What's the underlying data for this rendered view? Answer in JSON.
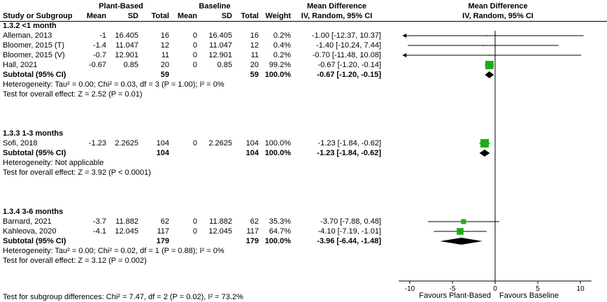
{
  "columns": {
    "study": "Study or Subgroup",
    "mean": "Mean",
    "sd": "SD",
    "total": "Total",
    "weight": "Weight",
    "group1": "Plant-Based",
    "group2": "Baseline",
    "md_header": "Mean Difference",
    "md_sub": "IV, Random, 95% CI",
    "plot_header": "Mean Difference",
    "plot_sub": "IV, Random, 95% CI"
  },
  "footer": {
    "subgroup_test": "Test for subgroup differences: Chi² = 7.47, df = 2 (P = 0.02), I² = 73.2%"
  },
  "colors": {
    "marker": "#17b017",
    "ci_line": "#000000",
    "diamond": "#000000",
    "axis": "#000000"
  },
  "chart_data": {
    "type": "forest",
    "effect_label": "Mean Difference",
    "method": "IV, Random, 95% CI",
    "axis": {
      "ticks": [
        -10,
        -5,
        0,
        5,
        10
      ],
      "range": [
        -10.8,
        10.8
      ],
      "favours_left": "Favours Plant-Based",
      "favours_right": "Favours Baseline"
    },
    "groups": [
      {
        "label": "1.3.2 <1 month",
        "studies": [
          {
            "study": "Alleman, 2013",
            "mean_pb": -1,
            "sd_pb": 16.405,
            "total_pb": 16,
            "mean_bl": 0,
            "sd_bl": 16.405,
            "total_bl": 16,
            "weight": "0.2%",
            "weight_pct": 0.2,
            "md_text": "-1.00 [-12.37, 10.37]",
            "est": -1.0,
            "ci": [
              -12.37,
              10.37
            ]
          },
          {
            "study": "Bloomer, 2015 (T)",
            "mean_pb": -1.4,
            "sd_pb": 11.047,
            "total_pb": 12,
            "mean_bl": 0,
            "sd_bl": 11.047,
            "total_bl": 12,
            "weight": "0.4%",
            "weight_pct": 0.4,
            "md_text": "-1.40 [-10.24, 7.44]",
            "est": -1.4,
            "ci": [
              -10.24,
              7.44
            ]
          },
          {
            "study": "Bloomer, 2015 (V)",
            "mean_pb": -0.7,
            "sd_pb": 12.901,
            "total_pb": 11,
            "mean_bl": 0,
            "sd_bl": 12.901,
            "total_bl": 11,
            "weight": "0.2%",
            "weight_pct": 0.2,
            "md_text": "-0.70 [-11.48, 10.08]",
            "est": -0.7,
            "ci": [
              -11.48,
              10.08
            ]
          },
          {
            "study": "Hall, 2021",
            "mean_pb": -0.67,
            "sd_pb": 0.85,
            "total_pb": 20,
            "mean_bl": 0,
            "sd_bl": 0.85,
            "total_bl": 20,
            "weight": "99.2%",
            "weight_pct": 99.2,
            "md_text": "-0.67 [-1.20, -0.14]",
            "est": -0.67,
            "ci": [
              -1.2,
              -0.14
            ]
          }
        ],
        "subtotal": {
          "label": "Subtotal (95% CI)",
          "total_pb": 59,
          "total_bl": 59,
          "weight": "100.0%",
          "md_text": "-0.67 [-1.20, -0.15]",
          "est": -0.67,
          "ci": [
            -1.2,
            -0.15
          ]
        },
        "heterogeneity": "Heterogeneity: Tau² = 0.00; Chi² = 0.03, df = 3 (P = 1.00); I² = 0%",
        "overall_test": "Test for overall effect: Z = 2.52 (P = 0.01)"
      },
      {
        "label": "1.3.3 1-3 months",
        "studies": [
          {
            "study": "Sofi, 2018",
            "mean_pb": -1.23,
            "sd_pb": 2.2625,
            "total_pb": 104,
            "mean_bl": 0,
            "sd_bl": 2.2625,
            "total_bl": 104,
            "weight": "100.0%",
            "weight_pct": 100,
            "md_text": "-1.23 [-1.84, -0.62]",
            "est": -1.23,
            "ci": [
              -1.84,
              -0.62
            ]
          }
        ],
        "subtotal": {
          "label": "Subtotal (95% CI)",
          "total_pb": 104,
          "total_bl": 104,
          "weight": "100.0%",
          "md_text": "-1.23 [-1.84, -0.62]",
          "est": -1.23,
          "ci": [
            -1.84,
            -0.62
          ]
        },
        "heterogeneity": "Heterogeneity: Not applicable",
        "overall_test": "Test for overall effect: Z = 3.92 (P < 0.0001)"
      },
      {
        "label": "1.3.4 3-6 months",
        "studies": [
          {
            "study": "Barnard, 2021",
            "mean_pb": -3.7,
            "sd_pb": 11.882,
            "total_pb": 62,
            "mean_bl": 0,
            "sd_bl": 11.882,
            "total_bl": 62,
            "weight": "35.3%",
            "weight_pct": 35.3,
            "md_text": "-3.70 [-7.88, 0.48]",
            "est": -3.7,
            "ci": [
              -7.88,
              0.48
            ]
          },
          {
            "study": "Kahleova, 2020",
            "mean_pb": -4.1,
            "sd_pb": 12.045,
            "total_pb": 117,
            "mean_bl": 0,
            "sd_bl": 12.045,
            "total_bl": 117,
            "weight": "64.7%",
            "weight_pct": 64.7,
            "md_text": "-4.10 [-7.19, -1.01]",
            "est": -4.1,
            "ci": [
              -7.19,
              -1.01
            ]
          }
        ],
        "subtotal": {
          "label": "Subtotal (95% CI)",
          "total_pb": 179,
          "total_bl": 179,
          "weight": "100.0%",
          "md_text": "-3.96 [-6.44, -1.48]",
          "est": -3.96,
          "ci": [
            -6.44,
            -1.48
          ]
        },
        "heterogeneity": "Heterogeneity: Tau² = 0.00; Chi² = 0.02, df = 1 (P = 0.88); I² = 0%",
        "overall_test": "Test for overall effect: Z = 3.12 (P = 0.002)"
      }
    ]
  }
}
